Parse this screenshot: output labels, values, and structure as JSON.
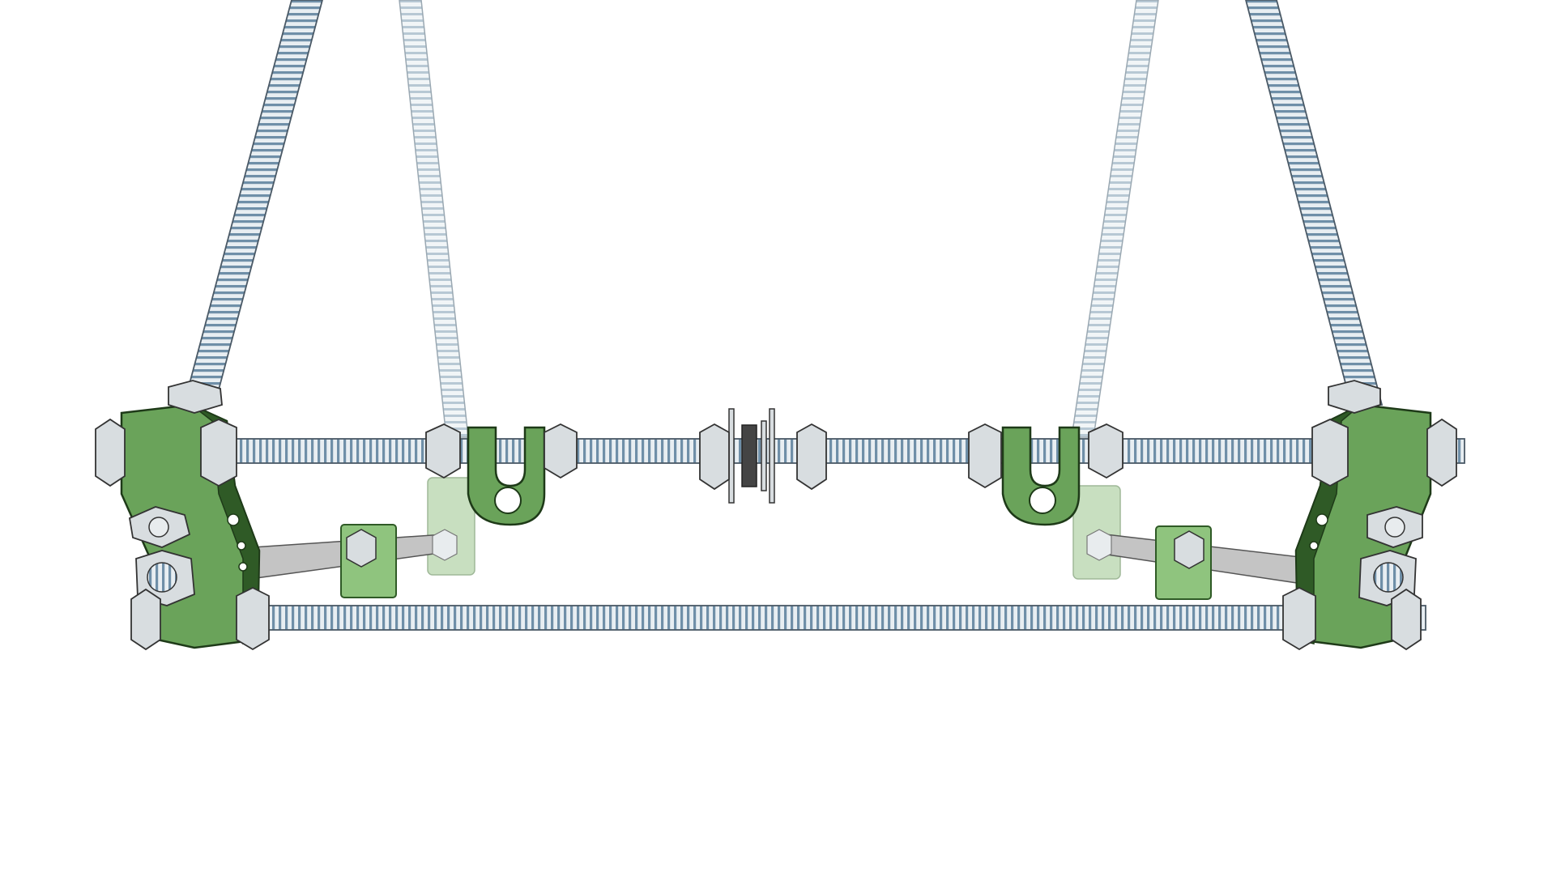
{
  "scene": {
    "background": "#ffffff",
    "colors": {
      "printed_part": "#6aa35a",
      "printed_part_dark": "#2f5a26",
      "printed_part_faded": "#c8dfc0",
      "threaded_rod_light": "#e8eef2",
      "threaded_rod_stripe": "#6f8fa8",
      "faded_rod": "#cfdbe3",
      "nut": "#d8dde0",
      "smooth_rod": "#c8c8c8",
      "washer_dark": "#333333"
    }
  }
}
